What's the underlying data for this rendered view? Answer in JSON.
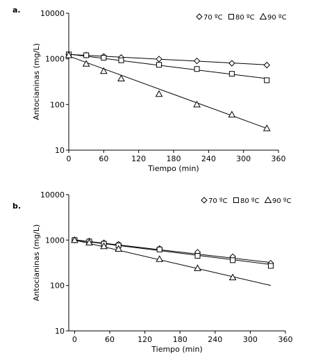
{
  "chart_data": [
    {
      "type": "scatter",
      "panel_label": "a.",
      "xlabel": "Tiempo (min)",
      "ylabel": "Antocianinas (mg/L)",
      "xlim": [
        0,
        360
      ],
      "ylim": [
        10,
        10000
      ],
      "yscale": "log",
      "x_ticks": [
        "0",
        "60",
        "120",
        "180",
        "240",
        "300",
        "360"
      ],
      "y_ticks": [
        "10",
        "100",
        "1000",
        "10000"
      ],
      "legend": {
        "position": "top-right"
      },
      "series": [
        {
          "name": "70 ºC",
          "marker": "diamond",
          "x": [
            0,
            30,
            60,
            90,
            155,
            220,
            280,
            340
          ],
          "y": [
            1250,
            1210,
            1130,
            1070,
            990,
            900,
            800,
            730
          ],
          "fit": {
            "x0": 0,
            "y0": 1250,
            "x1": 340,
            "y1": 740
          }
        },
        {
          "name": "80 ºC",
          "marker": "square",
          "x": [
            0,
            30,
            60,
            90,
            155,
            220,
            280,
            340
          ],
          "y": [
            1250,
            1200,
            1060,
            930,
            740,
            600,
            470,
            340
          ],
          "fit": {
            "x0": 0,
            "y0": 1270,
            "x1": 340,
            "y1": 370
          }
        },
        {
          "name": "90 ºC",
          "marker": "triangle",
          "x": [
            0,
            30,
            60,
            90,
            155,
            220,
            280,
            340
          ],
          "y": [
            1200,
            780,
            540,
            370,
            170,
            100,
            60,
            30
          ],
          "fit": {
            "x0": 0,
            "y0": 1150,
            "x1": 340,
            "y1": 30
          }
        }
      ]
    },
    {
      "type": "scatter",
      "panel_label": "b.",
      "xlabel": "Tiempo (min)",
      "ylabel": "Antocianinas (mg/L)",
      "xlim": [
        -10,
        360
      ],
      "ylim": [
        10,
        10000
      ],
      "yscale": "log",
      "x_ticks": [
        "0",
        "60",
        "120",
        "180",
        "240",
        "300",
        "360"
      ],
      "y_ticks": [
        "10",
        "100",
        "1000",
        "10000"
      ],
      "legend": {
        "position": "top-right"
      },
      "series": [
        {
          "name": "70 ºC",
          "marker": "diamond",
          "x": [
            0,
            25,
            50,
            75,
            145,
            210,
            270,
            335
          ],
          "y": [
            1000,
            950,
            870,
            810,
            650,
            540,
            430,
            310
          ],
          "fit": {
            "x0": 0,
            "y0": 1010,
            "x1": 335,
            "y1": 320
          }
        },
        {
          "name": "80 ºC",
          "marker": "square",
          "x": [
            0,
            25,
            50,
            75,
            145,
            210,
            270,
            335
          ],
          "y": [
            1000,
            930,
            830,
            760,
            620,
            450,
            360,
            270
          ],
          "fit": {
            "x0": 0,
            "y0": 1000,
            "x1": 335,
            "y1": 290
          }
        },
        {
          "name": "90 ºC",
          "marker": "triangle",
          "x": [
            0,
            25,
            50,
            75,
            145,
            210,
            270
          ],
          "y": [
            1000,
            880,
            730,
            640,
            380,
            240,
            150
          ],
          "fit": {
            "x0": 0,
            "y0": 1000,
            "x1": 335,
            "y1": 100
          }
        }
      ]
    }
  ]
}
